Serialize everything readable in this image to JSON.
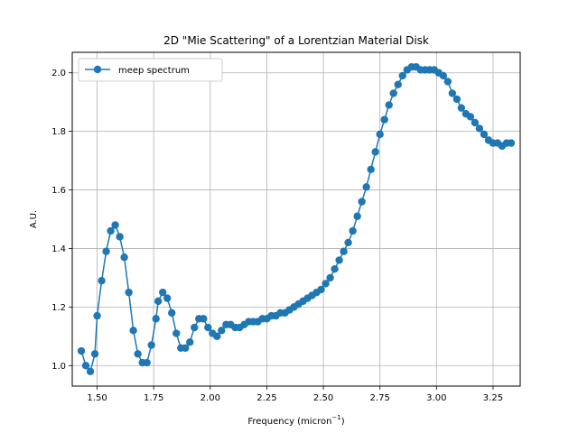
{
  "chart_data": {
    "type": "line",
    "title": "2D \"Mie Scattering\" of a Lorentzian Material Disk",
    "xlabel": "Frequency (micron",
    "xlabel_sup": "−1",
    "xlabel_close": ")",
    "ylabel": "A.U.",
    "xlim": [
      1.39,
      3.37
    ],
    "ylim": [
      0.93,
      2.07
    ],
    "xticks": [
      1.5,
      1.75,
      2.0,
      2.25,
      2.5,
      2.75,
      3.0,
      3.25
    ],
    "xtick_labels": [
      "1.50",
      "1.75",
      "2.00",
      "2.25",
      "2.50",
      "2.75",
      "3.00",
      "3.25"
    ],
    "yticks": [
      1.0,
      1.2,
      1.4,
      1.6,
      1.8,
      2.0
    ],
    "ytick_labels": [
      "1.0",
      "1.2",
      "1.4",
      "1.6",
      "1.8",
      "2.0"
    ],
    "grid": true,
    "legend_position": "top-left",
    "series": [
      {
        "name": "meep spectrum",
        "color": "#1f77b4",
        "marker": "circle",
        "x": [
          1.43,
          1.45,
          1.47,
          1.49,
          1.5,
          1.52,
          1.54,
          1.56,
          1.58,
          1.6,
          1.62,
          1.64,
          1.66,
          1.68,
          1.7,
          1.72,
          1.74,
          1.76,
          1.77,
          1.79,
          1.81,
          1.83,
          1.85,
          1.87,
          1.89,
          1.91,
          1.93,
          1.95,
          1.97,
          1.99,
          2.01,
          2.03,
          2.05,
          2.07,
          2.09,
          2.11,
          2.13,
          2.15,
          2.17,
          2.19,
          2.21,
          2.23,
          2.25,
          2.27,
          2.29,
          2.31,
          2.33,
          2.35,
          2.37,
          2.39,
          2.41,
          2.43,
          2.45,
          2.47,
          2.49,
          2.51,
          2.53,
          2.55,
          2.57,
          2.59,
          2.61,
          2.63,
          2.65,
          2.67,
          2.69,
          2.71,
          2.73,
          2.75,
          2.77,
          2.79,
          2.81,
          2.83,
          2.85,
          2.87,
          2.89,
          2.91,
          2.93,
          2.95,
          2.97,
          2.99,
          3.01,
          3.03,
          3.05,
          3.07,
          3.09,
          3.11,
          3.13,
          3.15,
          3.17,
          3.19,
          3.21,
          3.23,
          3.25,
          3.27,
          3.29,
          3.31,
          3.33
        ],
        "y": [
          1.05,
          1.0,
          0.98,
          1.04,
          1.17,
          1.29,
          1.39,
          1.46,
          1.48,
          1.44,
          1.37,
          1.25,
          1.12,
          1.04,
          1.01,
          1.01,
          1.07,
          1.16,
          1.22,
          1.25,
          1.23,
          1.18,
          1.11,
          1.06,
          1.06,
          1.08,
          1.13,
          1.16,
          1.16,
          1.13,
          1.11,
          1.1,
          1.12,
          1.14,
          1.14,
          1.13,
          1.13,
          1.14,
          1.15,
          1.15,
          1.15,
          1.16,
          1.16,
          1.17,
          1.17,
          1.18,
          1.18,
          1.19,
          1.2,
          1.21,
          1.22,
          1.23,
          1.24,
          1.25,
          1.26,
          1.28,
          1.3,
          1.33,
          1.36,
          1.39,
          1.42,
          1.46,
          1.51,
          1.56,
          1.61,
          1.67,
          1.73,
          1.79,
          1.84,
          1.89,
          1.93,
          1.96,
          1.99,
          2.01,
          2.02,
          2.02,
          2.01,
          2.01,
          2.01,
          2.01,
          2.0,
          1.99,
          1.97,
          1.93,
          1.91,
          1.88,
          1.86,
          1.85,
          1.83,
          1.81,
          1.79,
          1.77,
          1.76,
          1.76,
          1.75,
          1.76,
          1.76
        ]
      }
    ]
  }
}
